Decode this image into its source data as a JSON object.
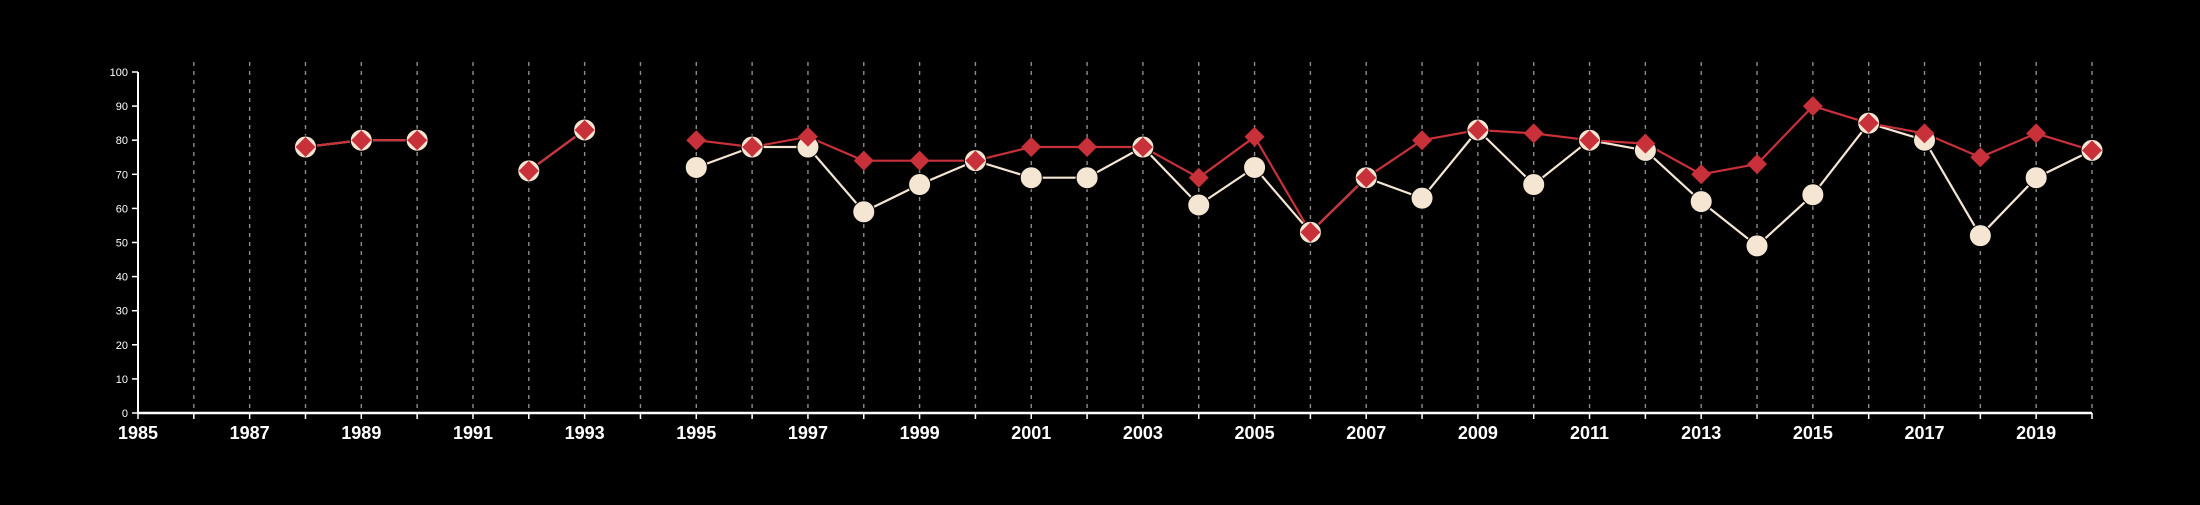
{
  "chart_data": {
    "type": "line",
    "title": "",
    "xlabel": "",
    "ylabel": "",
    "xlim": [
      1985,
      2020
    ],
    "ylim": [
      0,
      100
    ],
    "x_ticks": [
      1985,
      1987,
      1989,
      1991,
      1993,
      1995,
      1997,
      1999,
      2001,
      2003,
      2005,
      2007,
      2009,
      2011,
      2013,
      2015,
      2017,
      2019
    ],
    "x_tick_labels": [
      "1985",
      "1987",
      "1989",
      "1991",
      "1993",
      "1995",
      "1997",
      "1999",
      "2001",
      "2003",
      "2005",
      "2007",
      "2009",
      "2011",
      "2013",
      "2015",
      "2017",
      "2019"
    ],
    "y_ticks": [
      0,
      10,
      20,
      30,
      40,
      50,
      60,
      70,
      80,
      90,
      100
    ],
    "y_tick_labels": [
      "0",
      "10",
      "20",
      "30",
      "40",
      "50",
      "60",
      "70",
      "80",
      "90",
      "100"
    ],
    "vertical_grid_years": [
      1986,
      1987,
      1988,
      1989,
      1990,
      1991,
      1992,
      1993,
      1994,
      1995,
      1996,
      1997,
      1998,
      1999,
      2000,
      2001,
      2002,
      2003,
      2004,
      2005,
      2006,
      2007,
      2008,
      2009,
      2010,
      2011,
      2012,
      2013,
      2014,
      2015,
      2016,
      2017,
      2018,
      2019,
      2020
    ],
    "grid": "vertical dashed",
    "legend": "none",
    "colors": {
      "background": "#000000",
      "axis": "#ffffff",
      "grid": "#bbbbbb",
      "circle_series": "#f5e6d3",
      "diamond_series": "#c8313a"
    },
    "series": [
      {
        "marker": "circle",
        "points": [
          {
            "x": 1988,
            "y": 78
          },
          {
            "x": 1989,
            "y": 80
          },
          {
            "x": 1990,
            "y": 80
          },
          null,
          {
            "x": 1992,
            "y": 71
          },
          {
            "x": 1993,
            "y": 83
          },
          null,
          {
            "x": 1995,
            "y": 72
          },
          {
            "x": 1996,
            "y": 78
          },
          {
            "x": 1997,
            "y": 78
          },
          {
            "x": 1998,
            "y": 59
          },
          {
            "x": 1999,
            "y": 67
          },
          {
            "x": 2000,
            "y": 74
          },
          {
            "x": 2001,
            "y": 69
          },
          {
            "x": 2002,
            "y": 69
          },
          {
            "x": 2003,
            "y": 78
          },
          {
            "x": 2004,
            "y": 61
          },
          {
            "x": 2005,
            "y": 72
          },
          {
            "x": 2006,
            "y": 53
          },
          {
            "x": 2007,
            "y": 69
          },
          {
            "x": 2008,
            "y": 63
          },
          {
            "x": 2009,
            "y": 83
          },
          {
            "x": 2010,
            "y": 67
          },
          {
            "x": 2011,
            "y": 80
          },
          {
            "x": 2012,
            "y": 77
          },
          {
            "x": 2013,
            "y": 62
          },
          {
            "x": 2014,
            "y": 49
          },
          {
            "x": 2015,
            "y": 64
          },
          {
            "x": 2016,
            "y": 85
          },
          {
            "x": 2017,
            "y": 80
          },
          {
            "x": 2018,
            "y": 52
          },
          {
            "x": 2019,
            "y": 69
          },
          {
            "x": 2020,
            "y": 77
          }
        ]
      },
      {
        "marker": "diamond",
        "points": [
          {
            "x": 1988,
            "y": 78
          },
          {
            "x": 1989,
            "y": 80
          },
          {
            "x": 1990,
            "y": 80
          },
          null,
          {
            "x": 1992,
            "y": 71
          },
          {
            "x": 1993,
            "y": 83
          },
          null,
          {
            "x": 1995,
            "y": 80
          },
          {
            "x": 1996,
            "y": 78
          },
          {
            "x": 1997,
            "y": 81
          },
          {
            "x": 1998,
            "y": 74
          },
          {
            "x": 1999,
            "y": 74
          },
          {
            "x": 2000,
            "y": 74
          },
          {
            "x": 2001,
            "y": 78
          },
          {
            "x": 2002,
            "y": 78
          },
          {
            "x": 2003,
            "y": 78
          },
          {
            "x": 2004,
            "y": 69
          },
          {
            "x": 2005,
            "y": 81
          },
          {
            "x": 2006,
            "y": 53
          },
          {
            "x": 2007,
            "y": 69
          },
          {
            "x": 2008,
            "y": 80
          },
          {
            "x": 2009,
            "y": 83
          },
          {
            "x": 2010,
            "y": 82
          },
          {
            "x": 2011,
            "y": 80
          },
          {
            "x": 2012,
            "y": 79
          },
          {
            "x": 2013,
            "y": 70
          },
          {
            "x": 2014,
            "y": 73
          },
          {
            "x": 2015,
            "y": 90
          },
          {
            "x": 2016,
            "y": 85
          },
          {
            "x": 2017,
            "y": 82
          },
          {
            "x": 2018,
            "y": 75
          },
          {
            "x": 2019,
            "y": 82
          },
          {
            "x": 2020,
            "y": 77
          }
        ]
      }
    ]
  }
}
